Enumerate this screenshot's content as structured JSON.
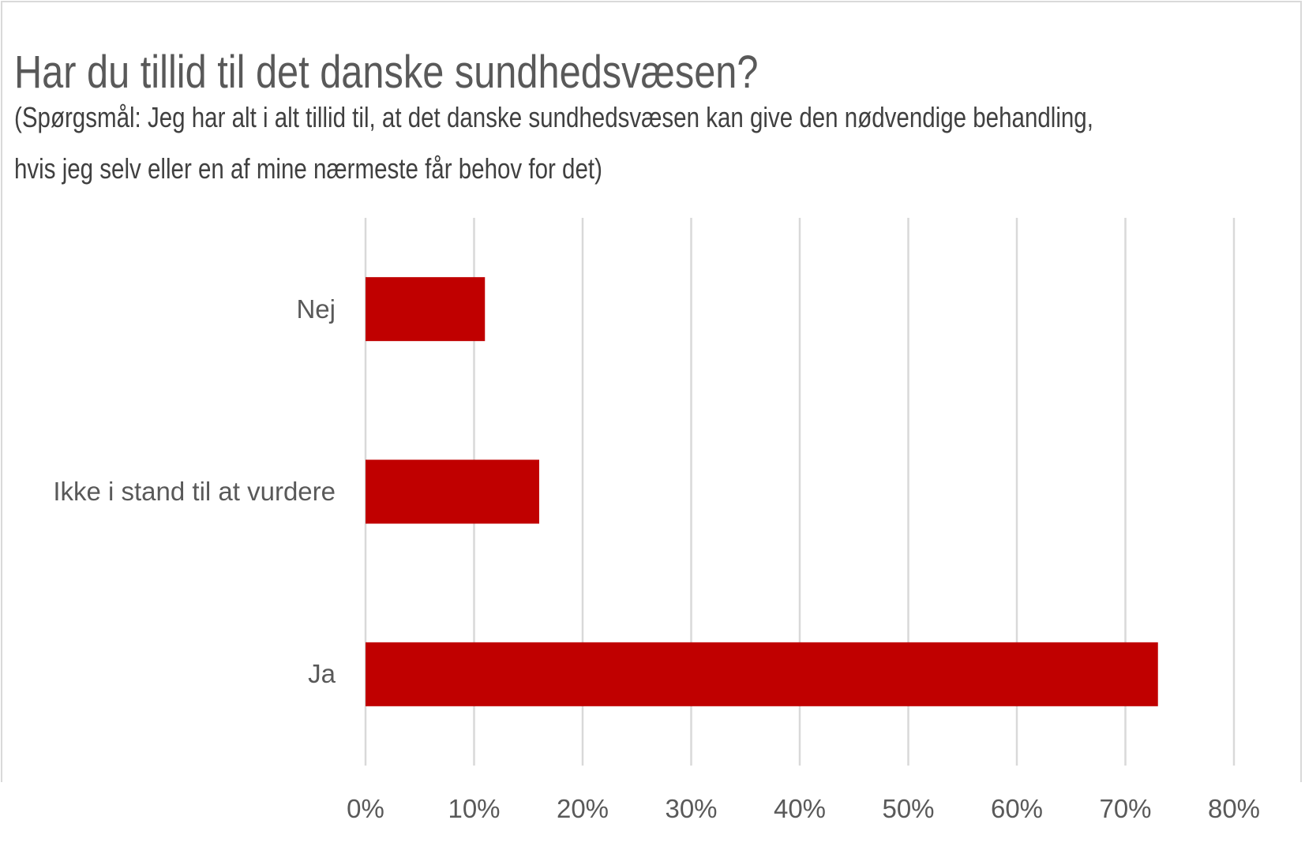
{
  "chart_data": {
    "type": "bar",
    "orientation": "horizontal",
    "title": "Har du tillid til det danske sundhedsvæsen?",
    "subtitle_lines": [
      "(Spørgsmål: Jeg har alt i alt tillid til, at det danske sundhedsvæsen kan give den nødvendige behandling,",
      "hvis jeg selv eller en af mine nærmeste får behov for det)"
    ],
    "categories": [
      "Nej",
      "Ikke i stand til at vurdere",
      "Ja"
    ],
    "values": [
      11,
      16,
      73
    ],
    "unit": "%",
    "xlim": [
      0,
      80
    ],
    "x_ticks": [
      "0%",
      "10%",
      "20%",
      "30%",
      "40%",
      "50%",
      "60%",
      "70%",
      "80%"
    ],
    "grid": "vertical",
    "legend": "none",
    "bar_color": "#c00000",
    "xlabel": "",
    "ylabel": ""
  }
}
